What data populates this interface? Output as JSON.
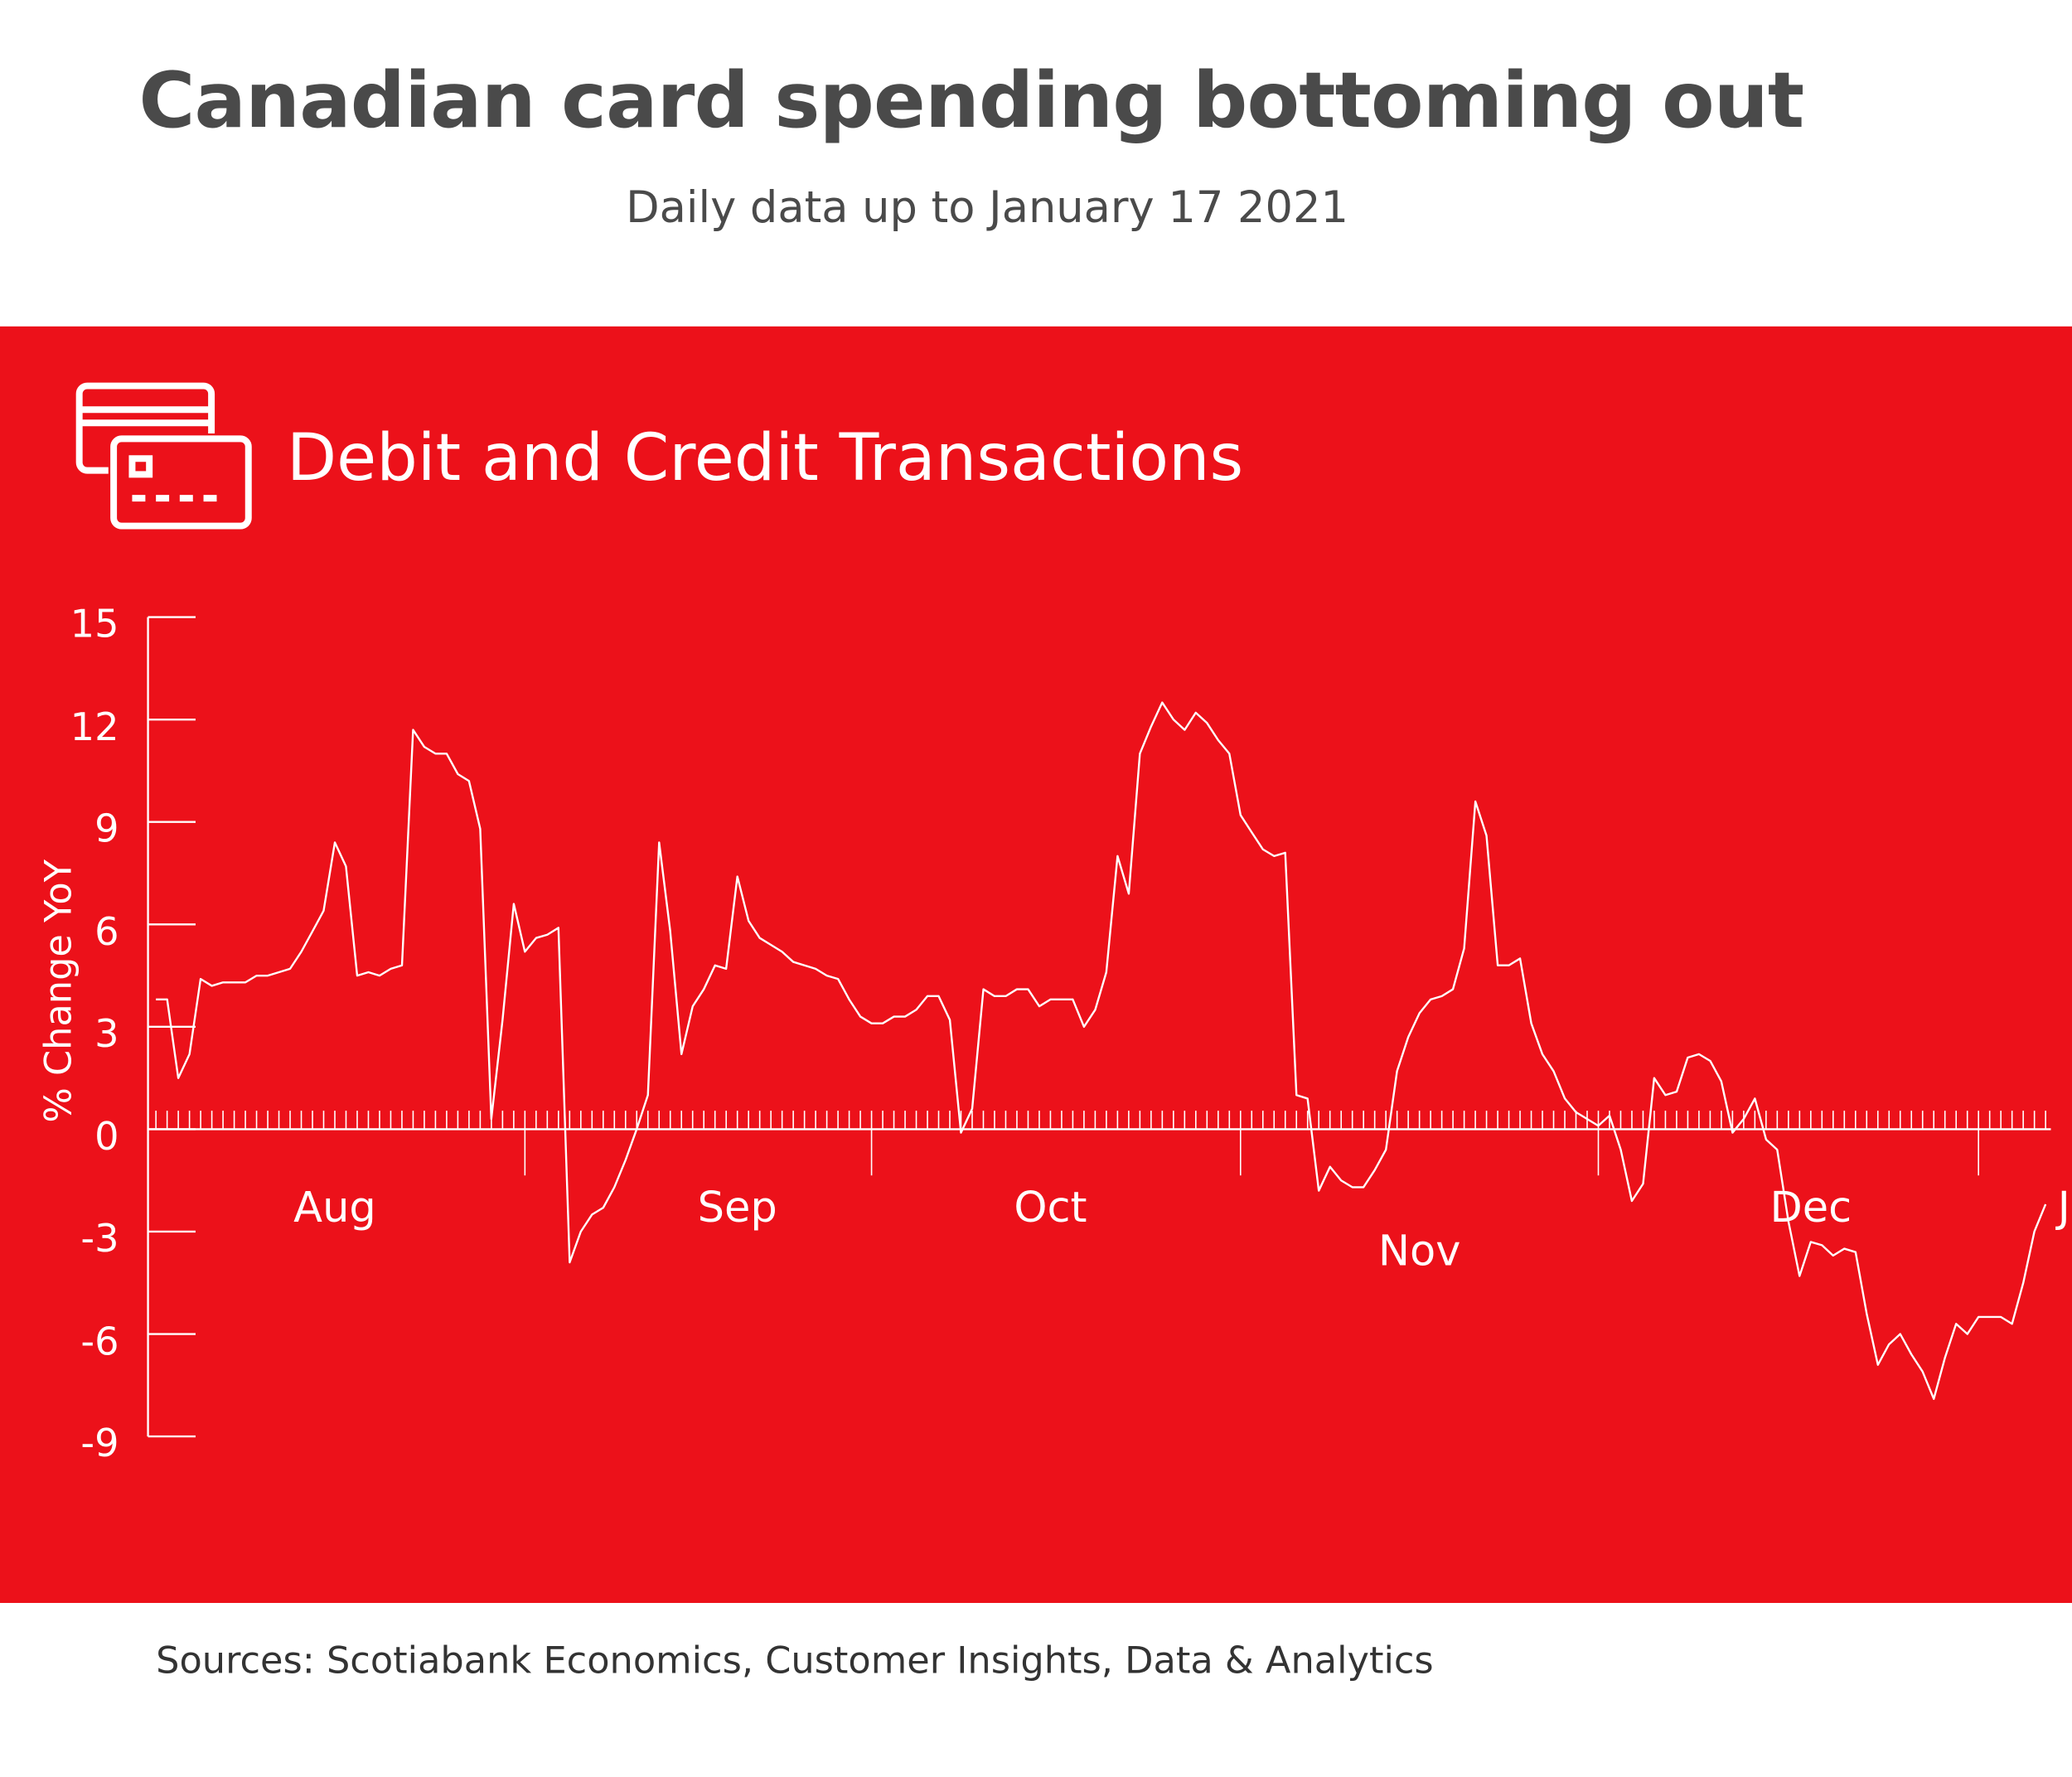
{
  "header": {
    "title": "Canadian card spending bottoming out",
    "subtitle": "Daily data up to January 17 2021"
  },
  "panel": {
    "title": "Debit and Credit Transactions",
    "icon": "credit-cards-icon"
  },
  "footer": {
    "sources": "Sources: Scotiabank Economics, Customer Insights, Data & Analytics"
  },
  "colors": {
    "band": "#ec111a",
    "line": "#ffffff",
    "title": "#4a4a4a"
  },
  "chart_data": {
    "type": "line",
    "title": "Debit and Credit Transactions",
    "ylabel": "% Change YoY",
    "xlabel": "",
    "ylim": [
      -9,
      15
    ],
    "yticks": [
      "15",
      "12",
      "9",
      "6",
      "3",
      "0",
      "-3",
      "-6",
      "-9"
    ],
    "ytick_values": [
      15,
      12,
      9,
      6,
      3,
      0,
      -3,
      -6,
      -9
    ],
    "x_note": "daily observations, late July 2020 to January 17 2021",
    "month_labels": [
      {
        "label": "Aug",
        "index": 16
      },
      {
        "label": "Sep",
        "index": 52
      },
      {
        "label": "Oct",
        "index": 80
      },
      {
        "label": "Nov",
        "index": 113
      },
      {
        "label": "Dec",
        "index": 148
      },
      {
        "label": "Jan",
        "index": 173
      }
    ],
    "month_boundaries": [
      33,
      64,
      97,
      129,
      163
    ],
    "series": [
      {
        "name": "% Change YoY",
        "values": [
          3.8,
          3.8,
          1.5,
          2.2,
          4.4,
          4.2,
          4.3,
          4.3,
          4.3,
          4.5,
          4.5,
          4.6,
          4.7,
          5.2,
          5.8,
          6.4,
          8.4,
          7.7,
          4.5,
          4.6,
          4.5,
          4.7,
          4.8,
          11.7,
          11.2,
          11.0,
          11.0,
          10.4,
          10.2,
          8.8,
          0.3,
          3.2,
          6.6,
          5.2,
          5.6,
          5.7,
          5.9,
          -3.9,
          -3.0,
          -2.5,
          -2.3,
          -1.7,
          -0.9,
          0.0,
          1.0,
          8.4,
          5.8,
          2.2,
          3.6,
          4.1,
          4.8,
          4.7,
          7.4,
          6.1,
          5.6,
          5.4,
          5.2,
          4.9,
          4.8,
          4.7,
          4.5,
          4.4,
          3.8,
          3.3,
          3.1,
          3.1,
          3.3,
          3.3,
          3.5,
          3.9,
          3.9,
          3.2,
          -0.1,
          0.6,
          4.1,
          3.9,
          3.9,
          4.1,
          4.1,
          3.6,
          3.8,
          3.8,
          3.8,
          3.0,
          3.5,
          4.6,
          8.0,
          6.9,
          11.0,
          11.8,
          12.5,
          12.0,
          11.7,
          12.2,
          11.9,
          11.4,
          11.0,
          9.2,
          8.7,
          8.2,
          8.0,
          8.1,
          1.0,
          0.9,
          -1.8,
          -1.1,
          -1.5,
          -1.7,
          -1.7,
          -1.2,
          -0.6,
          1.7,
          2.7,
          3.4,
          3.8,
          3.9,
          4.1,
          5.3,
          9.6,
          8.6,
          4.8,
          4.8,
          5.0,
          3.1,
          2.2,
          1.7,
          0.9,
          0.5,
          0.3,
          0.1,
          0.4,
          -0.6,
          -2.1,
          -1.6,
          1.5,
          1.0,
          1.1,
          2.1,
          2.2,
          2.0,
          1.4,
          -0.1,
          0.3,
          0.9,
          -0.3,
          -0.6,
          -2.7,
          -4.3,
          -3.3,
          -3.4,
          -3.7,
          -3.5,
          -3.6,
          -5.4,
          -6.9,
          -6.3,
          -6.0,
          -6.6,
          -7.1,
          -7.9,
          -6.7,
          -5.7,
          -6.0,
          -5.5,
          -5.5,
          -5.5,
          -5.7,
          -4.5,
          -3.0,
          -2.2
        ]
      }
    ]
  }
}
